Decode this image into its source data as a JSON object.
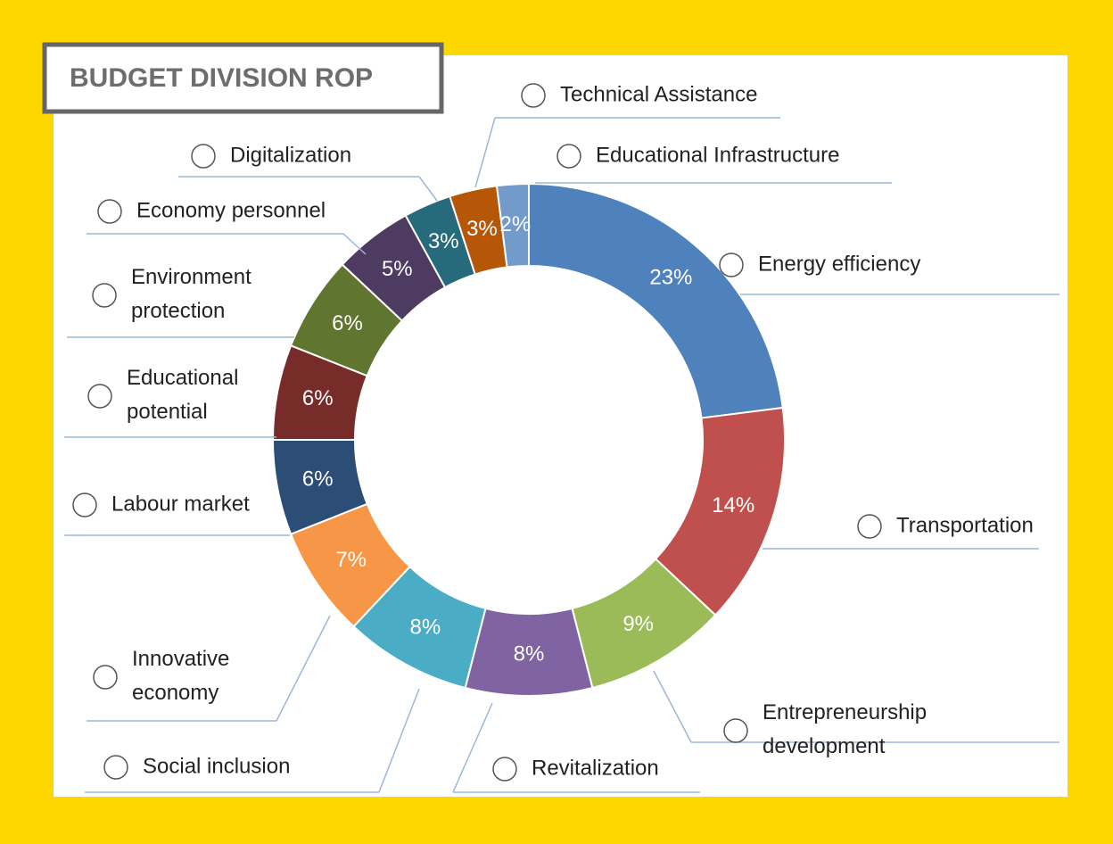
{
  "chart_data": {
    "type": "donut",
    "title": "BUDGET DIVISION ROP",
    "categories": [
      "Energy efficiency",
      "Transportation",
      "Entrepreneurship development",
      "Revitalization",
      "Social inclusion",
      "Innovative economy",
      "Labour market",
      "Educational potential",
      "Environment protection",
      "Economy personnel",
      "Digitalization",
      "Technical Assistance",
      "Educational Infrastructure"
    ],
    "values": [
      23,
      14,
      9,
      8,
      8,
      7,
      6,
      6,
      6,
      5,
      3,
      3,
      2
    ],
    "value_labels": [
      "23%",
      "14%",
      "9%",
      "8%",
      "8%",
      "7%",
      "6%",
      "6%",
      "6%",
      "5%",
      "3%",
      "3%",
      "2%"
    ],
    "colors": [
      "#4f81bd",
      "#c0504d",
      "#9bbb59",
      "#8064a2",
      "#4bacc6",
      "#f79646",
      "#2c4d75",
      "#772c2a",
      "#5f7530",
      "#4d3b62",
      "#276a7c",
      "#b65708",
      "#729aca"
    ]
  }
}
